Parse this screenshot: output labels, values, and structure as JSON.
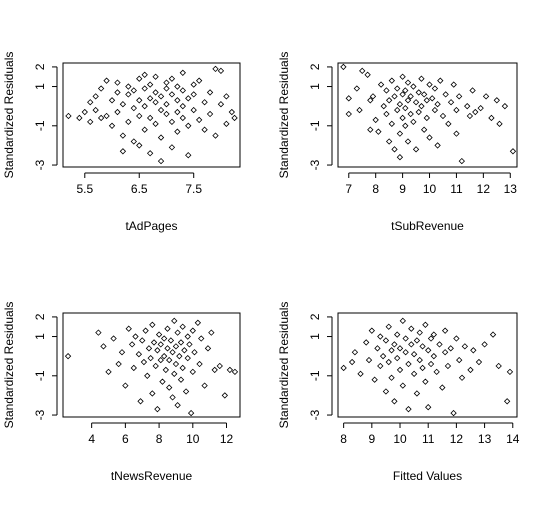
{
  "chart_data": [
    {
      "type": "scatter",
      "xlabel": "tAdPages",
      "ylabel": "Standardized Residuals",
      "xlim": [
        5.1,
        8.35
      ],
      "ylim": [
        -3.1,
        2.2
      ],
      "xticks": [
        5.5,
        6.5,
        7.5
      ],
      "xtick_labels": [
        "5.5",
        "6.5",
        "7.5"
      ],
      "yticks": [
        -3,
        -1,
        1,
        2
      ],
      "ytick_labels": [
        "-3",
        "-1",
        "1",
        "2"
      ],
      "grid": false,
      "points": [
        [
          5.2,
          -0.5
        ],
        [
          5.4,
          -0.6
        ],
        [
          5.5,
          -0.3
        ],
        [
          5.6,
          0.2
        ],
        [
          5.6,
          -0.8
        ],
        [
          5.7,
          0.5
        ],
        [
          5.7,
          -0.2
        ],
        [
          5.8,
          -0.6
        ],
        [
          5.8,
          0.9
        ],
        [
          5.9,
          1.3
        ],
        [
          5.9,
          -0.5
        ],
        [
          6.0,
          0.3
        ],
        [
          6.0,
          -1.0
        ],
        [
          6.1,
          0.7
        ],
        [
          6.1,
          -0.3
        ],
        [
          6.1,
          1.2
        ],
        [
          6.2,
          0.1
        ],
        [
          6.2,
          -1.5
        ],
        [
          6.2,
          -2.3
        ],
        [
          6.3,
          0.6
        ],
        [
          6.3,
          -0.8
        ],
        [
          6.3,
          1.0
        ],
        [
          6.4,
          -0.1
        ],
        [
          6.4,
          -1.8
        ],
        [
          6.4,
          0.8
        ],
        [
          6.5,
          0.3
        ],
        [
          6.5,
          -0.5
        ],
        [
          6.5,
          1.4
        ],
        [
          6.5,
          -2.0
        ],
        [
          6.6,
          0.0
        ],
        [
          6.6,
          0.9
        ],
        [
          6.6,
          -1.2
        ],
        [
          6.6,
          1.6
        ],
        [
          6.7,
          0.4
        ],
        [
          6.7,
          -0.6
        ],
        [
          6.7,
          1.1
        ],
        [
          6.7,
          -2.4
        ],
        [
          6.8,
          0.2
        ],
        [
          6.8,
          -0.9
        ],
        [
          6.8,
          0.7
        ],
        [
          6.8,
          1.5
        ],
        [
          6.9,
          -0.2
        ],
        [
          6.9,
          0.5
        ],
        [
          6.9,
          -1.6
        ],
        [
          6.9,
          -2.8
        ],
        [
          7.0,
          0.9
        ],
        [
          7.0,
          -0.4
        ],
        [
          7.0,
          1.2
        ],
        [
          7.0,
          0.1
        ],
        [
          7.1,
          -0.8
        ],
        [
          7.1,
          0.6
        ],
        [
          7.1,
          -2.1
        ],
        [
          7.1,
          1.4
        ],
        [
          7.2,
          0.3
        ],
        [
          7.2,
          -0.3
        ],
        [
          7.2,
          1.0
        ],
        [
          7.2,
          -1.3
        ],
        [
          7.3,
          0.0
        ],
        [
          7.3,
          0.8
        ],
        [
          7.3,
          -0.6
        ],
        [
          7.3,
          1.7
        ],
        [
          7.4,
          -1.0
        ],
        [
          7.4,
          0.4
        ],
        [
          7.4,
          -2.5
        ],
        [
          7.5,
          1.1
        ],
        [
          7.5,
          -0.2
        ],
        [
          7.5,
          0.6
        ],
        [
          7.6,
          -0.7
        ],
        [
          7.6,
          1.3
        ],
        [
          7.7,
          0.2
        ],
        [
          7.7,
          -1.2
        ],
        [
          7.8,
          0.7
        ],
        [
          7.8,
          -0.4
        ],
        [
          7.9,
          1.9
        ],
        [
          7.9,
          -1.5
        ],
        [
          8.0,
          0.1
        ],
        [
          8.0,
          1.8
        ],
        [
          8.1,
          -0.9
        ],
        [
          8.1,
          0.5
        ],
        [
          8.2,
          -0.3
        ],
        [
          8.25,
          -0.6
        ]
      ]
    },
    {
      "type": "scatter",
      "xlabel": "tSubRevenue",
      "ylabel": "Standardized Residuals",
      "xlim": [
        6.6,
        13.25
      ],
      "ylim": [
        -3.1,
        2.2
      ],
      "xticks": [
        7,
        8,
        9,
        10,
        11,
        12,
        13
      ],
      "xtick_labels": [
        "7",
        "8",
        "9",
        "10",
        "11",
        "12",
        "13"
      ],
      "yticks": [
        -3,
        -1,
        1,
        2
      ],
      "ytick_labels": [
        "-3",
        "-1",
        "1",
        "2"
      ],
      "grid": false,
      "points": [
        [
          6.8,
          2.0
        ],
        [
          7.0,
          -0.4
        ],
        [
          7.0,
          0.4
        ],
        [
          7.3,
          0.9
        ],
        [
          7.4,
          -0.2
        ],
        [
          7.5,
          1.8
        ],
        [
          7.7,
          1.6
        ],
        [
          7.8,
          0.3
        ],
        [
          7.8,
          -1.2
        ],
        [
          7.9,
          0.5
        ],
        [
          8.0,
          -0.7
        ],
        [
          8.1,
          -1.3
        ],
        [
          8.2,
          1.1
        ],
        [
          8.3,
          0.0
        ],
        [
          8.4,
          -0.4
        ],
        [
          8.4,
          0.8
        ],
        [
          8.5,
          -1.8
        ],
        [
          8.5,
          0.3
        ],
        [
          8.6,
          -0.9
        ],
        [
          8.6,
          1.3
        ],
        [
          8.7,
          -2.2
        ],
        [
          8.7,
          0.5
        ],
        [
          8.8,
          -0.2
        ],
        [
          8.8,
          0.9
        ],
        [
          8.9,
          -1.4
        ],
        [
          8.9,
          0.1
        ],
        [
          8.9,
          -2.6
        ],
        [
          9.0,
          0.6
        ],
        [
          9.0,
          -0.6
        ],
        [
          9.0,
          1.5
        ],
        [
          9.1,
          -0.1
        ],
        [
          9.1,
          0.8
        ],
        [
          9.1,
          -1.0
        ],
        [
          9.2,
          0.3
        ],
        [
          9.2,
          1.2
        ],
        [
          9.2,
          -1.8
        ],
        [
          9.3,
          -0.4
        ],
        [
          9.3,
          0.5
        ],
        [
          9.4,
          1.0
        ],
        [
          9.4,
          -0.8
        ],
        [
          9.5,
          0.2
        ],
        [
          9.5,
          -2.2
        ],
        [
          9.6,
          0.7
        ],
        [
          9.6,
          -0.3
        ],
        [
          9.7,
          1.4
        ],
        [
          9.7,
          0.0
        ],
        [
          9.8,
          -1.2
        ],
        [
          9.8,
          0.6
        ],
        [
          9.9,
          0.3
        ],
        [
          9.9,
          -0.6
        ],
        [
          10.0,
          1.1
        ],
        [
          10.0,
          -1.6
        ],
        [
          10.1,
          0.4
        ],
        [
          10.2,
          -0.2
        ],
        [
          10.2,
          0.9
        ],
        [
          10.3,
          -2.0
        ],
        [
          10.3,
          0.1
        ],
        [
          10.4,
          1.3
        ],
        [
          10.5,
          -0.5
        ],
        [
          10.6,
          0.6
        ],
        [
          10.7,
          -0.9
        ],
        [
          10.8,
          0.2
        ],
        [
          10.9,
          1.1
        ],
        [
          11.0,
          -1.4
        ],
        [
          11.0,
          -0.2
        ],
        [
          11.1,
          0.5
        ],
        [
          11.2,
          -2.8
        ],
        [
          11.4,
          0.0
        ],
        [
          11.5,
          -0.5
        ],
        [
          11.6,
          0.8
        ],
        [
          11.7,
          -0.3
        ],
        [
          11.9,
          -0.1
        ],
        [
          12.1,
          0.5
        ],
        [
          12.3,
          -0.6
        ],
        [
          12.5,
          0.3
        ],
        [
          12.6,
          -0.9
        ],
        [
          12.8,
          0.0
        ],
        [
          13.1,
          -2.3
        ]
      ]
    },
    {
      "type": "scatter",
      "xlabel": "tNewsRevenue",
      "ylabel": "Standardized Residuals",
      "xlim": [
        2.3,
        12.8
      ],
      "ylim": [
        -3.1,
        2.2
      ],
      "xticks": [
        4,
        6,
        8,
        10,
        12
      ],
      "xtick_labels": [
        "4",
        "6",
        "8",
        "10",
        "12"
      ],
      "yticks": [
        -3,
        -1,
        1,
        2
      ],
      "ytick_labels": [
        "-3",
        "-1",
        "1",
        "2"
      ],
      "grid": false,
      "points": [
        [
          2.6,
          0.0
        ],
        [
          4.4,
          1.2
        ],
        [
          4.7,
          0.5
        ],
        [
          5.0,
          -0.8
        ],
        [
          5.3,
          0.9
        ],
        [
          5.6,
          -0.4
        ],
        [
          5.8,
          0.2
        ],
        [
          6.0,
          -1.5
        ],
        [
          6.2,
          1.4
        ],
        [
          6.4,
          0.6
        ],
        [
          6.5,
          -0.6
        ],
        [
          6.6,
          1.0
        ],
        [
          6.8,
          0.1
        ],
        [
          6.9,
          -2.3
        ],
        [
          7.0,
          0.8
        ],
        [
          7.1,
          -0.3
        ],
        [
          7.2,
          1.3
        ],
        [
          7.3,
          -1.0
        ],
        [
          7.4,
          0.4
        ],
        [
          7.5,
          -0.1
        ],
        [
          7.6,
          1.6
        ],
        [
          7.6,
          -1.9
        ],
        [
          7.7,
          0.7
        ],
        [
          7.8,
          -0.5
        ],
        [
          7.9,
          0.3
        ],
        [
          7.9,
          -2.7
        ],
        [
          8.0,
          1.1
        ],
        [
          8.1,
          -0.2
        ],
        [
          8.1,
          0.6
        ],
        [
          8.2,
          -1.3
        ],
        [
          8.3,
          0.9
        ],
        [
          8.3,
          0.0
        ],
        [
          8.4,
          -0.7
        ],
        [
          8.5,
          1.4
        ],
        [
          8.5,
          0.4
        ],
        [
          8.6,
          -1.6
        ],
        [
          8.6,
          -0.2
        ],
        [
          8.7,
          0.8
        ],
        [
          8.8,
          -2.1
        ],
        [
          8.8,
          0.2
        ],
        [
          8.9,
          1.8
        ],
        [
          8.9,
          -0.9
        ],
        [
          9.0,
          0.5
        ],
        [
          9.0,
          -0.4
        ],
        [
          9.1,
          1.2
        ],
        [
          9.1,
          -2.5
        ],
        [
          9.2,
          0.0
        ],
        [
          9.3,
          0.7
        ],
        [
          9.3,
          -1.2
        ],
        [
          9.4,
          1.5
        ],
        [
          9.4,
          -0.6
        ],
        [
          9.5,
          0.3
        ],
        [
          9.6,
          -1.8
        ],
        [
          9.7,
          1.0
        ],
        [
          9.7,
          -0.1
        ],
        [
          9.8,
          0.6
        ],
        [
          9.9,
          -2.9
        ],
        [
          10.0,
          1.3
        ],
        [
          10.0,
          -0.8
        ],
        [
          10.1,
          0.2
        ],
        [
          10.3,
          1.7
        ],
        [
          10.4,
          -0.4
        ],
        [
          10.5,
          0.9
        ],
        [
          10.7,
          -1.5
        ],
        [
          10.9,
          0.4
        ],
        [
          11.1,
          1.2
        ],
        [
          11.3,
          -0.7
        ],
        [
          11.6,
          -0.5
        ],
        [
          11.9,
          -2.0
        ],
        [
          12.2,
          -0.7
        ],
        [
          12.5,
          -0.8
        ]
      ]
    },
    {
      "type": "scatter",
      "xlabel": "Fitted Values",
      "ylabel": "Standardized Residuals",
      "xlim": [
        7.8,
        14.15
      ],
      "ylim": [
        -3.1,
        2.2
      ],
      "xticks": [
        8,
        9,
        10,
        11,
        12,
        13,
        14
      ],
      "xtick_labels": [
        "8",
        "9",
        "10",
        "11",
        "12",
        "13",
        "14"
      ],
      "yticks": [
        -3,
        -1,
        1,
        2
      ],
      "ytick_labels": [
        "-3",
        "-1",
        "1",
        "2"
      ],
      "grid": false,
      "points": [
        [
          8.0,
          -0.6
        ],
        [
          8.3,
          -0.3
        ],
        [
          8.4,
          0.2
        ],
        [
          8.6,
          -0.9
        ],
        [
          8.8,
          0.7
        ],
        [
          8.9,
          -0.2
        ],
        [
          9.0,
          1.3
        ],
        [
          9.1,
          -1.2
        ],
        [
          9.2,
          0.4
        ],
        [
          9.3,
          -0.5
        ],
        [
          9.3,
          1.0
        ],
        [
          9.4,
          0.0
        ],
        [
          9.5,
          -1.8
        ],
        [
          9.5,
          0.8
        ],
        [
          9.6,
          -0.3
        ],
        [
          9.6,
          1.5
        ],
        [
          9.7,
          0.3
        ],
        [
          9.7,
          -1.1
        ],
        [
          9.8,
          0.6
        ],
        [
          9.8,
          -2.3
        ],
        [
          9.9,
          -0.1
        ],
        [
          9.9,
          1.1
        ],
        [
          10.0,
          0.4
        ],
        [
          10.0,
          -0.7
        ],
        [
          10.1,
          1.8
        ],
        [
          10.1,
          -1.5
        ],
        [
          10.2,
          0.2
        ],
        [
          10.2,
          0.9
        ],
        [
          10.3,
          -0.4
        ],
        [
          10.3,
          -2.7
        ],
        [
          10.4,
          0.6
        ],
        [
          10.4,
          1.4
        ],
        [
          10.5,
          -0.9
        ],
        [
          10.5,
          0.1
        ],
        [
          10.6,
          0.8
        ],
        [
          10.6,
          -1.9
        ],
        [
          10.7,
          -0.2
        ],
        [
          10.7,
          1.2
        ],
        [
          10.8,
          0.5
        ],
        [
          10.8,
          -0.6
        ],
        [
          10.9,
          1.6
        ],
        [
          10.9,
          -1.3
        ],
        [
          11.0,
          0.3
        ],
        [
          11.0,
          -2.6
        ],
        [
          11.1,
          0.9
        ],
        [
          11.1,
          -0.4
        ],
        [
          11.2,
          0.0
        ],
        [
          11.2,
          1.1
        ],
        [
          11.3,
          -0.8
        ],
        [
          11.4,
          0.6
        ],
        [
          11.5,
          -1.6
        ],
        [
          11.6,
          0.2
        ],
        [
          11.6,
          1.3
        ],
        [
          11.7,
          -0.5
        ],
        [
          11.8,
          0.4
        ],
        [
          11.9,
          -2.9
        ],
        [
          12.0,
          0.9
        ],
        [
          12.1,
          -0.2
        ],
        [
          12.2,
          -1.1
        ],
        [
          12.3,
          0.5
        ],
        [
          12.5,
          -0.7
        ],
        [
          12.6,
          0.3
        ],
        [
          12.8,
          -0.3
        ],
        [
          13.0,
          0.6
        ],
        [
          13.3,
          1.1
        ],
        [
          13.5,
          -0.5
        ],
        [
          13.8,
          -2.3
        ],
        [
          13.9,
          -0.8
        ]
      ]
    }
  ]
}
